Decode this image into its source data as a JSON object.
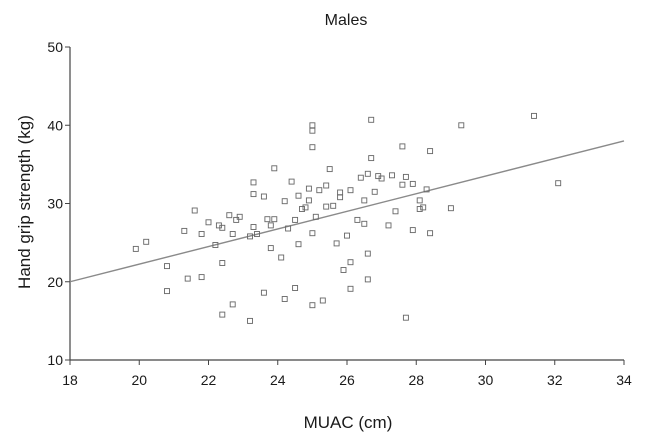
{
  "chart_data": {
    "type": "scatter",
    "title": "Males",
    "xlabel": "MUAC (cm)",
    "ylabel": "Hand grip strength (kg)",
    "xlim": [
      18,
      34
    ],
    "ylim": [
      10,
      50
    ],
    "xticks": [
      "18",
      "20",
      "22",
      "24",
      "26",
      "28",
      "30",
      "32",
      "34"
    ],
    "yticks": [
      "10",
      "20",
      "30",
      "40",
      "50"
    ],
    "grid": false,
    "marker": "open-square",
    "colors": {
      "points": "#666666",
      "line": "#8a8a8a",
      "axis": "#444444",
      "text": "#1a1a1a"
    },
    "points": [
      [
        19.9,
        24.2
      ],
      [
        20.2,
        25.1
      ],
      [
        20.8,
        22.0
      ],
      [
        20.8,
        18.8
      ],
      [
        21.3,
        26.5
      ],
      [
        21.4,
        20.4
      ],
      [
        21.6,
        29.1
      ],
      [
        21.8,
        20.6
      ],
      [
        21.8,
        26.1
      ],
      [
        22.0,
        27.6
      ],
      [
        22.2,
        24.7
      ],
      [
        22.3,
        27.2
      ],
      [
        22.4,
        26.9
      ],
      [
        22.4,
        22.4
      ],
      [
        22.4,
        15.8
      ],
      [
        22.6,
        28.5
      ],
      [
        22.7,
        17.1
      ],
      [
        22.7,
        26.1
      ],
      [
        22.8,
        27.9
      ],
      [
        22.9,
        28.3
      ],
      [
        23.2,
        25.8
      ],
      [
        23.3,
        27.0
      ],
      [
        23.3,
        32.7
      ],
      [
        23.2,
        15.0
      ],
      [
        23.3,
        31.2
      ],
      [
        23.4,
        26.1
      ],
      [
        23.6,
        30.9
      ],
      [
        23.6,
        18.6
      ],
      [
        23.7,
        28.0
      ],
      [
        23.8,
        24.3
      ],
      [
        23.8,
        27.2
      ],
      [
        23.9,
        34.5
      ],
      [
        23.9,
        28.0
      ],
      [
        24.1,
        23.1
      ],
      [
        24.2,
        30.3
      ],
      [
        24.2,
        17.8
      ],
      [
        24.3,
        26.8
      ],
      [
        24.4,
        32.8
      ],
      [
        24.5,
        19.2
      ],
      [
        24.5,
        27.9
      ],
      [
        24.6,
        31.0
      ],
      [
        24.6,
        24.8
      ],
      [
        24.7,
        29.3
      ],
      [
        24.8,
        29.5
      ],
      [
        24.9,
        31.9
      ],
      [
        24.9,
        30.4
      ],
      [
        25.0,
        17.0
      ],
      [
        25.0,
        26.2
      ],
      [
        25.0,
        37.2
      ],
      [
        25.0,
        39.3
      ],
      [
        25.0,
        40.0
      ],
      [
        25.1,
        28.3
      ],
      [
        25.2,
        31.7
      ],
      [
        25.3,
        17.6
      ],
      [
        25.4,
        29.6
      ],
      [
        25.4,
        32.3
      ],
      [
        25.5,
        34.4
      ],
      [
        25.6,
        29.7
      ],
      [
        25.7,
        24.9
      ],
      [
        25.8,
        30.8
      ],
      [
        25.8,
        31.4
      ],
      [
        25.9,
        21.5
      ],
      [
        26.0,
        25.9
      ],
      [
        26.1,
        19.1
      ],
      [
        26.1,
        22.5
      ],
      [
        26.1,
        31.7
      ],
      [
        26.3,
        27.9
      ],
      [
        26.4,
        33.3
      ],
      [
        26.5,
        30.4
      ],
      [
        26.5,
        27.4
      ],
      [
        26.6,
        33.8
      ],
      [
        26.6,
        23.6
      ],
      [
        26.6,
        20.3
      ],
      [
        26.7,
        40.7
      ],
      [
        26.7,
        35.8
      ],
      [
        26.8,
        31.5
      ],
      [
        26.9,
        33.5
      ],
      [
        27.0,
        33.2
      ],
      [
        27.2,
        27.2
      ],
      [
        27.3,
        33.6
      ],
      [
        27.4,
        29.0
      ],
      [
        27.6,
        37.3
      ],
      [
        27.6,
        32.4
      ],
      [
        27.7,
        33.4
      ],
      [
        27.7,
        15.4
      ],
      [
        27.9,
        32.5
      ],
      [
        27.9,
        26.6
      ],
      [
        28.1,
        30.4
      ],
      [
        28.1,
        29.3
      ],
      [
        28.2,
        29.5
      ],
      [
        28.3,
        31.8
      ],
      [
        28.4,
        36.7
      ],
      [
        28.4,
        26.2
      ],
      [
        29.0,
        29.4
      ],
      [
        29.3,
        40.0
      ],
      [
        31.4,
        41.2
      ],
      [
        32.1,
        32.6
      ]
    ],
    "fit_line": {
      "x": [
        18,
        34
      ],
      "y": [
        20.0,
        38.0
      ]
    }
  }
}
